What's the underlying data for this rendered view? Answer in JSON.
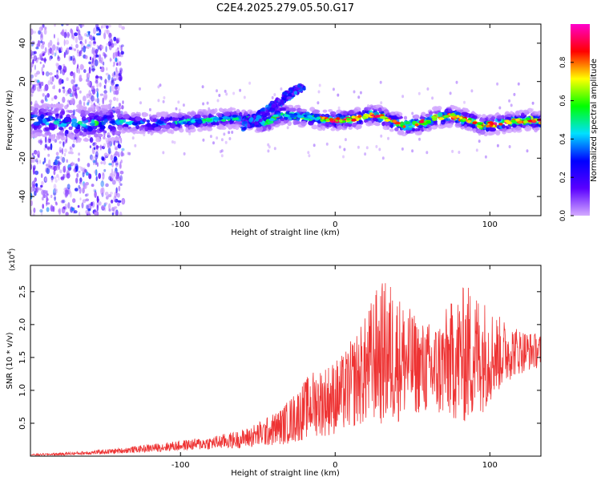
{
  "title": "C2E4.2025.279.05.50.G17",
  "chart_data": [
    {
      "type": "heatmap",
      "title": "C2E4.2025.279.05.50.G17",
      "xlabel": "Height of straight line (km)",
      "ylabel": "Frequency (Hz)",
      "xlim": [
        -197,
        133
      ],
      "ylim": [
        -50,
        50
      ],
      "xticks": [
        -100,
        0,
        100
      ],
      "xtick_labels": [
        "-100",
        "0",
        "100"
      ],
      "yticks": [
        -40,
        -20,
        0,
        20,
        40
      ],
      "ytick_labels": [
        "-40",
        "-20",
        "0",
        "20",
        "40"
      ],
      "colorbar": {
        "label": "Normalized spectral amplitude",
        "range": [
          0,
          1
        ],
        "ticks": [
          0.0,
          0.2,
          0.4,
          0.6,
          0.8
        ],
        "tick_labels": [
          "0.0",
          "0.2",
          "0.4",
          "0.6",
          "0.8"
        ],
        "colors": [
          "#d4aaff",
          "#5a00ff",
          "#0000ff",
          "#00e0ff",
          "#00ff00",
          "#ffff00",
          "#ff0000",
          "#ff00cc"
        ]
      },
      "ridge": {
        "x": [
          -197,
          -180,
          -160,
          -140,
          -120,
          -100,
          -80,
          -65,
          -55,
          -45,
          -35,
          -25,
          -15,
          -5,
          5,
          15,
          25,
          35,
          45,
          55,
          65,
          75,
          85,
          95,
          105,
          115,
          125,
          133
        ],
        "y": [
          0,
          -1,
          -2,
          -1,
          -2,
          -1,
          0,
          1,
          0,
          -2,
          3,
          2,
          1,
          0,
          0,
          1,
          3,
          0,
          -3,
          -2,
          1,
          2,
          0,
          -3,
          -2,
          -1,
          0,
          -1
        ]
      },
      "branch": {
        "x": [
          -60,
          -52,
          -45,
          -38,
          -32,
          -26,
          -20
        ],
        "y": [
          -3,
          0,
          4,
          8,
          12,
          15,
          17
        ]
      }
    },
    {
      "type": "line",
      "xlabel": "Height of straight line (km)",
      "ylabel": "SNR (10 * v/v)",
      "multiplier": "(x10",
      "multiplier_exp": "4",
      "xlim": [
        -197,
        133
      ],
      "ylim": [
        0,
        2.9
      ],
      "xticks": [
        -100,
        0,
        100
      ],
      "xtick_labels": [
        "-100",
        "0",
        "100"
      ],
      "yticks": [
        0.5,
        1.0,
        1.5,
        2.0,
        2.5
      ],
      "ytick_labels": [
        "0.5",
        "1.0",
        "1.5",
        "2.0",
        "2.5"
      ],
      "series": [
        {
          "name": "SNR",
          "color": "#ee3333",
          "x": [
            -197,
            -180,
            -160,
            -140,
            -120,
            -100,
            -80,
            -60,
            -45,
            -35,
            -25,
            -15,
            -5,
            5,
            15,
            20,
            25,
            30,
            35,
            40,
            45,
            55,
            65,
            75,
            85,
            95,
            105,
            115,
            125,
            133
          ],
          "center": [
            0.02,
            0.03,
            0.05,
            0.08,
            0.12,
            0.16,
            0.2,
            0.26,
            0.36,
            0.45,
            0.6,
            0.8,
            0.85,
            0.95,
            1.2,
            1.3,
            1.5,
            1.55,
            1.55,
            1.5,
            1.45,
            1.35,
            1.3,
            1.45,
            1.55,
            1.55,
            1.55,
            1.6,
            1.6,
            1.6
          ],
          "amplitude": [
            0.01,
            0.02,
            0.03,
            0.04,
            0.06,
            0.08,
            0.1,
            0.14,
            0.22,
            0.28,
            0.4,
            0.5,
            0.55,
            0.6,
            0.75,
            0.85,
            1.0,
            1.1,
            1.15,
            1.0,
            0.9,
            0.7,
            0.75,
            0.9,
            1.1,
            0.9,
            0.6,
            0.4,
            0.3,
            0.25
          ]
        }
      ]
    }
  ]
}
